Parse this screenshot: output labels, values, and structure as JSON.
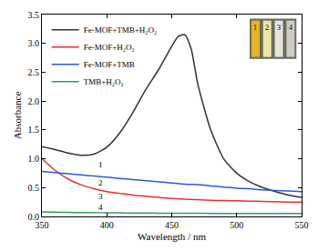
{
  "chart_data": {
    "type": "line",
    "x_label": "Wavelength / nm",
    "y_label": "Absorbance",
    "x": [
      350,
      360,
      370,
      380,
      390,
      400,
      410,
      420,
      430,
      440,
      450,
      455,
      460,
      465,
      470,
      480,
      490,
      500,
      510,
      520,
      530,
      540,
      550
    ],
    "series": [
      {
        "name": "Fe-MOF+TMB+H₂O₂",
        "color": "#333333",
        "values": [
          1.21,
          1.16,
          1.1,
          1.06,
          1.08,
          1.2,
          1.45,
          1.8,
          2.2,
          2.55,
          2.95,
          3.12,
          3.15,
          2.9,
          2.3,
          1.5,
          1.0,
          0.75,
          0.6,
          0.5,
          0.43,
          0.37,
          0.33
        ]
      },
      {
        "name": "Fe-MOF+H₂O₂",
        "color": "#e8312f",
        "values": [
          1.0,
          0.8,
          0.65,
          0.55,
          0.48,
          0.43,
          0.4,
          0.37,
          0.35,
          0.33,
          0.31,
          0.305,
          0.3,
          0.295,
          0.29,
          0.28,
          0.275,
          0.27,
          0.265,
          0.26,
          0.255,
          0.25,
          0.25
        ]
      },
      {
        "name": "Fe-MOF+TMB",
        "color": "#2a5bd7",
        "values": [
          0.78,
          0.76,
          0.74,
          0.72,
          0.7,
          0.68,
          0.66,
          0.64,
          0.62,
          0.6,
          0.58,
          0.57,
          0.56,
          0.555,
          0.55,
          0.53,
          0.51,
          0.49,
          0.48,
          0.46,
          0.45,
          0.44,
          0.43
        ]
      },
      {
        "name": "TMB+H₂O₂",
        "color": "#2ca05a",
        "values": [
          0.08,
          0.075,
          0.07,
          0.068,
          0.066,
          0.064,
          0.062,
          0.06,
          0.058,
          0.057,
          0.056,
          0.055,
          0.055,
          0.054,
          0.054,
          0.053,
          0.052,
          0.051,
          0.05,
          0.05,
          0.05,
          0.05,
          0.05
        ]
      }
    ],
    "xlim": [
      350,
      550
    ],
    "xticks": [
      350,
      400,
      450,
      500,
      550
    ],
    "ylim": [
      0,
      3.5
    ],
    "yticks": [
      {
        "value": 0,
        "label": "0.0"
      },
      {
        "value": 0.5,
        "label": "0.5"
      },
      {
        "value": 1,
        "label": "1.0"
      },
      {
        "value": 1.5,
        "label": "1.5"
      },
      {
        "value": 2,
        "label": "2.0"
      },
      {
        "value": 2.5,
        "label": "2.5"
      },
      {
        "value": 3,
        "label": "3.0"
      },
      {
        "value": 3.5,
        "label": "3.5"
      }
    ],
    "grid": false,
    "legend": "top-left",
    "annotations": [
      {
        "text": "1",
        "x": 395,
        "y": 0.9
      },
      {
        "text": "2",
        "x": 395,
        "y": 0.58
      },
      {
        "text": "3",
        "x": 395,
        "y": 0.35
      },
      {
        "text": "4",
        "x": 395,
        "y": 0.16
      }
    ],
    "inset": {
      "labels": [
        "1",
        "2",
        "3",
        "4"
      ]
    }
  }
}
